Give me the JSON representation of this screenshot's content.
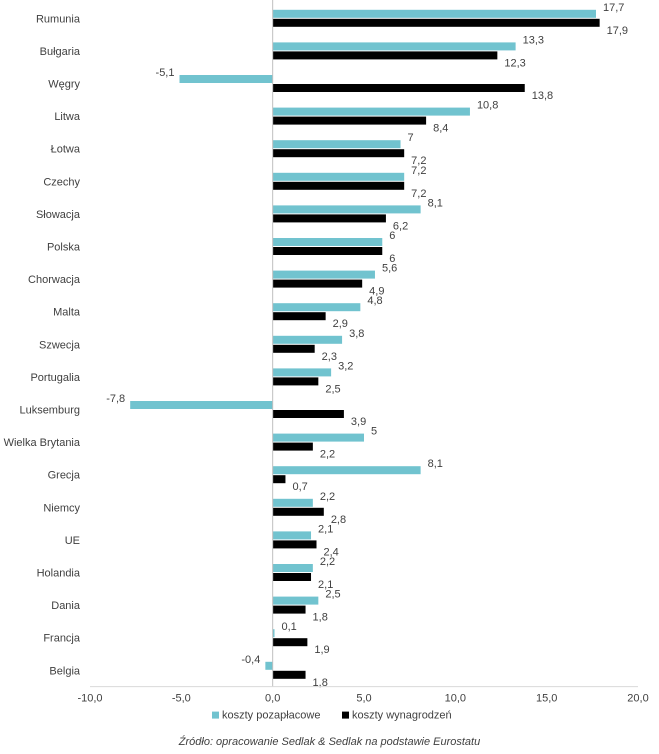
{
  "chart_data": {
    "type": "bar",
    "orientation": "horizontal",
    "categories": [
      "Rumunia",
      "Bułgaria",
      "Węgry",
      "Litwa",
      "Łotwa",
      "Czechy",
      "Słowacja",
      "Polska",
      "Chorwacja",
      "Malta",
      "Szwecja",
      "Portugalia",
      "Luksemburg",
      "Wielka Brytania",
      "Grecja",
      "Niemcy",
      "UE",
      "Holandia",
      "Dania",
      "Francja",
      "Belgia"
    ],
    "series": [
      {
        "name": "koszty pozapłacowe",
        "color": "#71C3CF",
        "values": [
          17.7,
          13.3,
          -5.1,
          10.8,
          7,
          7.2,
          8.1,
          6,
          5.6,
          4.8,
          3.8,
          3.2,
          -7.8,
          5,
          8.1,
          2.2,
          2.1,
          2.2,
          2.5,
          0.1,
          -0.4
        ],
        "labels": [
          "17,7",
          "13,3",
          "-5,1",
          "10,8",
          "7",
          "7,2",
          "8,1",
          "6",
          "5,6",
          "4,8",
          "3,8",
          "3,2",
          "-7,8",
          "5",
          "8,1",
          "2,2",
          "2,1",
          "2,2",
          "2,5",
          "0,1",
          "-0,4"
        ]
      },
      {
        "name": "koszty wynagrodzeń",
        "color": "#000000",
        "values": [
          17.9,
          12.3,
          13.8,
          8.4,
          7.2,
          7.2,
          6.2,
          6,
          4.9,
          2.9,
          2.3,
          2.5,
          3.9,
          2.2,
          0.7,
          2.8,
          2.4,
          2.1,
          1.8,
          1.9,
          1.8
        ],
        "labels": [
          "17,9",
          "12,3",
          "13,8",
          "8,4",
          "7,2",
          "7,2",
          "6,2",
          "6",
          "4,9",
          "2,9",
          "2,3",
          "2,5",
          "3,9",
          "2,2",
          "0,7",
          "2,8",
          "2,4",
          "2,1",
          "1,8",
          "1,9",
          "1,8"
        ]
      }
    ],
    "xlim": [
      -10,
      20
    ],
    "xticks": [
      -10,
      -5,
      0,
      5,
      10,
      15,
      20
    ],
    "xtick_labels": [
      "-10,0",
      "-5,0",
      "0,0",
      "5,0",
      "10,0",
      "15,0",
      "20,0"
    ],
    "legend_position": "bottom",
    "grid": false
  },
  "source_note": "Źródło: opracowanie Sedlak & Sedlak na podstawie Eurostatu"
}
